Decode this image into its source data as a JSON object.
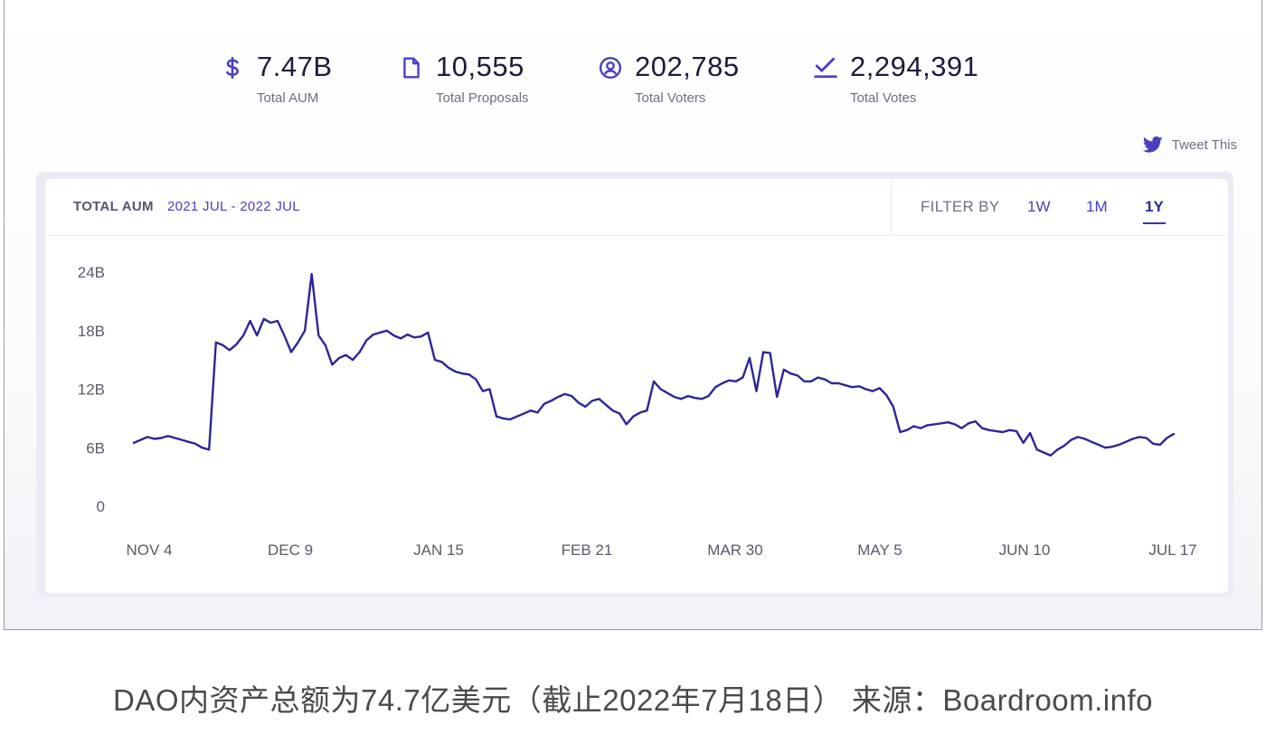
{
  "stats": [
    {
      "icon": "dollar-icon",
      "value": "7.47B",
      "label": "Total AUM"
    },
    {
      "icon": "document-icon",
      "value": "10,555",
      "label": "Total Proposals"
    },
    {
      "icon": "user-circle-icon",
      "value": "202,785",
      "label": "Total Voters"
    },
    {
      "icon": "check-vote-icon",
      "value": "2,294,391",
      "label": "Total Votes"
    }
  ],
  "tweet": {
    "icon": "twitter-icon",
    "label": "Tweet This"
  },
  "card": {
    "title": "TOTAL AUM",
    "range": "2021 JUL - 2022 JUL",
    "filter_label": "FILTER BY",
    "filters": [
      "1W",
      "1M",
      "1Y"
    ],
    "active_filter": "1Y"
  },
  "colors": {
    "accent": "#4b3fbf",
    "line": "#2e2596",
    "text_dark": "#1e1b3a"
  },
  "caption": "DAO内资产总额为74.7亿美元（截止2022年7月18日） 来源：Boardroom.info",
  "chart_data": {
    "type": "line",
    "title": "TOTAL AUM",
    "subtitle": "2021 JUL - 2022 JUL",
    "ylim": [
      0,
      24
    ],
    "yticks": [
      0,
      6,
      12,
      18,
      24
    ],
    "ytick_labels": [
      "0",
      "6B",
      "12B",
      "18B",
      "24B"
    ],
    "xtick_labels": [
      "NOV 4",
      "DEC 9",
      "JAN 15",
      "FEB 21",
      "MAR 30",
      "MAY 5",
      "JUN 10",
      "JUL 17"
    ],
    "grid": false,
    "series": [
      {
        "values": [
          6.5,
          6.8,
          7.1,
          6.9,
          7.0,
          7.2,
          7.0,
          6.8,
          6.6,
          6.4,
          6.0,
          5.8,
          16.8,
          16.5,
          16.0,
          16.6,
          17.5,
          19.0,
          17.5,
          19.2,
          18.8,
          19.0,
          17.5,
          15.8,
          16.8,
          18.0,
          23.8,
          17.5,
          16.5,
          14.5,
          15.2,
          15.5,
          15.0,
          15.8,
          17.0,
          17.6,
          17.8,
          18.0,
          17.5,
          17.2,
          17.6,
          17.3,
          17.4,
          17.8,
          15.0,
          14.8,
          14.2,
          13.8,
          13.6,
          13.5,
          13.0,
          11.8,
          12.0,
          9.2,
          9.0,
          8.9,
          9.2,
          9.5,
          9.8,
          9.6,
          10.5,
          10.8,
          11.2,
          11.5,
          11.3,
          10.6,
          10.2,
          10.8,
          11.0,
          10.4,
          9.8,
          9.5,
          8.4,
          9.2,
          9.6,
          9.8,
          12.8,
          12.0,
          11.6,
          11.2,
          11.0,
          11.3,
          11.1,
          11.0,
          11.3,
          12.2,
          12.6,
          12.9,
          12.8,
          13.2,
          15.2,
          11.8,
          15.8,
          15.7,
          11.2,
          14.0,
          13.6,
          13.4,
          12.8,
          12.8,
          13.2,
          13.0,
          12.6,
          12.6,
          12.4,
          12.2,
          12.3,
          12.0,
          11.8,
          12.1,
          11.4,
          10.2,
          7.6,
          7.8,
          8.2,
          8.0,
          8.3,
          8.4,
          8.5,
          8.6,
          8.4,
          8.0,
          8.5,
          8.7,
          8.0,
          7.8,
          7.7,
          7.6,
          7.8,
          7.7,
          6.5,
          7.5,
          5.8,
          5.5,
          5.2,
          5.8,
          6.2,
          6.8,
          7.1,
          6.9,
          6.6,
          6.3,
          6.0,
          6.1,
          6.3,
          6.6,
          6.9,
          7.1,
          7.0,
          6.4,
          6.3,
          7.0,
          7.4
        ]
      }
    ]
  }
}
